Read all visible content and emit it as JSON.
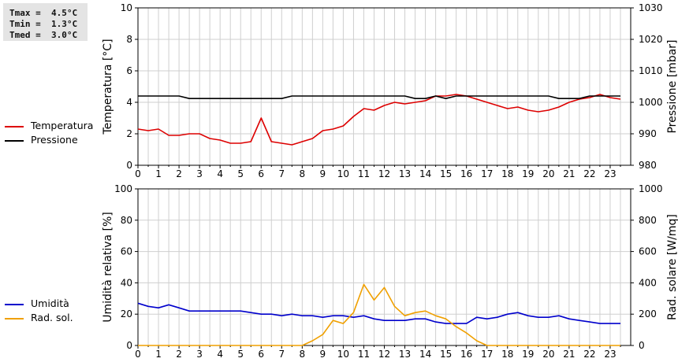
{
  "stats": {
    "tmax": "Tmax =  4.5°C",
    "tmin": "Tmin =  1.3°C",
    "tmed": "Tmed =  3.0°C"
  },
  "chart_data": [
    {
      "type": "line",
      "xlim": [
        0,
        24
      ],
      "xticks": [
        "0",
        "1",
        "2",
        "3",
        "4",
        "5",
        "6",
        "7",
        "8",
        "9",
        "10",
        "11",
        "12",
        "13",
        "14",
        "15",
        "16",
        "17",
        "18",
        "19",
        "20",
        "21",
        "22",
        "23"
      ],
      "ylabel": "Temperatura [°C]",
      "ylim": [
        0,
        10
      ],
      "yticks": [
        "0",
        "2",
        "4",
        "6",
        "8",
        "10"
      ],
      "y2label": "Pressione [mbar]",
      "y2lim": [
        980,
        1030
      ],
      "y2ticks": [
        "980",
        "990",
        "1000",
        "1010",
        "1020",
        "1030"
      ],
      "grid": true,
      "legend_position": "left",
      "series": [
        {
          "name": "Temperatura",
          "axis": "left",
          "color": "#dd0000",
          "x": [
            0,
            0.5,
            1,
            1.5,
            2,
            2.5,
            3,
            3.5,
            4,
            4.5,
            5,
            5.5,
            6,
            6.5,
            7,
            7.5,
            8,
            8.5,
            9,
            9.5,
            10,
            10.5,
            11,
            11.5,
            12,
            12.5,
            13,
            13.5,
            14,
            14.5,
            15,
            15.5,
            16,
            16.5,
            17,
            17.5,
            18,
            18.5,
            19,
            19.5,
            20,
            20.5,
            21,
            21.5,
            22,
            22.5,
            23,
            23.5
          ],
          "y": [
            2.3,
            2.2,
            2.3,
            1.9,
            1.9,
            2.0,
            2.0,
            1.7,
            1.6,
            1.4,
            1.4,
            1.5,
            3.0,
            1.5,
            1.4,
            1.3,
            1.5,
            1.7,
            2.2,
            2.3,
            2.5,
            3.1,
            3.6,
            3.5,
            3.8,
            4.0,
            3.9,
            4.0,
            4.1,
            4.4,
            4.4,
            4.5,
            4.4,
            4.2,
            4.0,
            3.8,
            3.6,
            3.7,
            3.5,
            3.4,
            3.5,
            3.7,
            4.0,
            4.2,
            4.3,
            4.5,
            4.3,
            4.2
          ]
        },
        {
          "name": "Pressione",
          "axis": "right",
          "color": "#000000",
          "x": [
            0,
            0.5,
            1,
            1.5,
            2,
            2.5,
            3,
            3.5,
            4,
            4.5,
            5,
            5.5,
            6,
            6.5,
            7,
            7.5,
            8,
            8.5,
            9,
            9.5,
            10,
            10.5,
            11,
            11.5,
            12,
            12.5,
            13,
            13.5,
            14,
            14.5,
            15,
            15.5,
            16,
            16.5,
            17,
            17.5,
            18,
            18.5,
            19,
            19.5,
            20,
            20.5,
            21,
            21.5,
            22,
            22.5,
            23,
            23.5
          ],
          "y": [
            1002,
            1002,
            1002,
            1002,
            1002,
            1001.2,
            1001.2,
            1001.2,
            1001.2,
            1001.2,
            1001.2,
            1001.2,
            1001.2,
            1001.2,
            1001.2,
            1002,
            1002,
            1002,
            1002,
            1002,
            1002,
            1002,
            1002,
            1002,
            1002,
            1002,
            1002,
            1001.2,
            1001.2,
            1002,
            1001.2,
            1002,
            1002,
            1002,
            1002,
            1002,
            1002,
            1002,
            1002,
            1002,
            1002,
            1001.2,
            1001.2,
            1001.2,
            1002,
            1002,
            1002,
            1002
          ]
        }
      ]
    },
    {
      "type": "line",
      "xlim": [
        0,
        24
      ],
      "xticks": [
        "0",
        "1",
        "2",
        "3",
        "4",
        "5",
        "6",
        "7",
        "8",
        "9",
        "10",
        "11",
        "12",
        "13",
        "14",
        "15",
        "16",
        "17",
        "18",
        "19",
        "20",
        "21",
        "22",
        "23"
      ],
      "ylabel": "Umidità relativa [%]",
      "ylim": [
        0,
        100
      ],
      "yticks": [
        "0",
        "20",
        "40",
        "60",
        "80",
        "100"
      ],
      "y2label": "Rad. solare [W/mq]",
      "y2lim": [
        0,
        1000
      ],
      "y2ticks": [
        "0",
        "200",
        "400",
        "600",
        "800",
        "1000"
      ],
      "grid": true,
      "legend_position": "left",
      "series": [
        {
          "name": "Umidità",
          "axis": "left",
          "color": "#0000cc",
          "x": [
            0,
            0.5,
            1,
            1.5,
            2,
            2.5,
            3,
            3.5,
            4,
            4.5,
            5,
            5.5,
            6,
            6.5,
            7,
            7.5,
            8,
            8.5,
            9,
            9.5,
            10,
            10.5,
            11,
            11.5,
            12,
            12.5,
            13,
            13.5,
            14,
            14.5,
            15,
            15.5,
            16,
            16.5,
            17,
            17.5,
            18,
            18.5,
            19,
            19.5,
            20,
            20.5,
            21,
            21.5,
            22,
            22.5,
            23,
            23.5
          ],
          "y": [
            27,
            25,
            24,
            26,
            24,
            22,
            22,
            22,
            22,
            22,
            22,
            21,
            20,
            20,
            19,
            20,
            19,
            19,
            18,
            19,
            19,
            18,
            19,
            17,
            16,
            16,
            16,
            17,
            17,
            15,
            14,
            14,
            14,
            18,
            17,
            18,
            20,
            21,
            19,
            18,
            18,
            19,
            17,
            16,
            15,
            14,
            14,
            14
          ]
        },
        {
          "name": "Rad. sol.",
          "axis": "right",
          "color": "#f0a000",
          "x": [
            0,
            0.5,
            1,
            1.5,
            2,
            2.5,
            3,
            3.5,
            4,
            4.5,
            5,
            5.5,
            6,
            6.5,
            7,
            7.5,
            8,
            8.5,
            9,
            9.5,
            10,
            10.5,
            11,
            11.5,
            12,
            12.5,
            13,
            13.5,
            14,
            14.5,
            15,
            15.5,
            16,
            16.5,
            17,
            17.5,
            18,
            18.5,
            19,
            19.5,
            20,
            20.5,
            21,
            21.5,
            22,
            22.5,
            23,
            23.5
          ],
          "y": [
            0,
            0,
            0,
            0,
            0,
            0,
            0,
            0,
            0,
            0,
            0,
            0,
            0,
            0,
            0,
            0,
            0,
            30,
            70,
            160,
            140,
            210,
            390,
            290,
            370,
            250,
            190,
            210,
            220,
            190,
            170,
            120,
            80,
            30,
            0,
            0,
            0,
            0,
            0,
            0,
            0,
            0,
            0,
            0,
            0,
            0,
            0,
            0
          ]
        }
      ]
    }
  ]
}
